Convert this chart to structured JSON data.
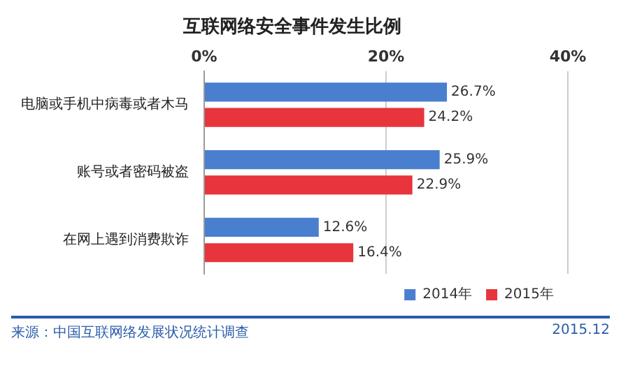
{
  "chart_data": {
    "type": "bar",
    "orientation": "horizontal",
    "title": "互联网络安全事件发生比例",
    "categories": [
      "电脑或手机中病毒或者木马",
      "账号或者密码被盗",
      "在网上遇到消费欺诈"
    ],
    "series": [
      {
        "name": "2014年",
        "color": "#4a7fcf",
        "values": [
          26.7,
          25.9,
          12.6
        ],
        "value_labels": [
          "26.7%",
          "25.9%",
          "12.6%"
        ]
      },
      {
        "name": "2015年",
        "color": "#e8343d",
        "values": [
          24.2,
          22.9,
          16.4
        ],
        "value_labels": [
          "24.2%",
          "22.9%",
          "16.4%"
        ]
      }
    ],
    "xlim": [
      0,
      40
    ],
    "xticks": [
      {
        "value": 0,
        "label": "0%"
      },
      {
        "value": 20,
        "label": "20%"
      },
      {
        "value": 40,
        "label": "40%"
      }
    ],
    "grid": "x",
    "legend": "bottom",
    "annotations": [
      "来源：中国互联网络发展状况统计调查",
      "2015.12"
    ]
  }
}
